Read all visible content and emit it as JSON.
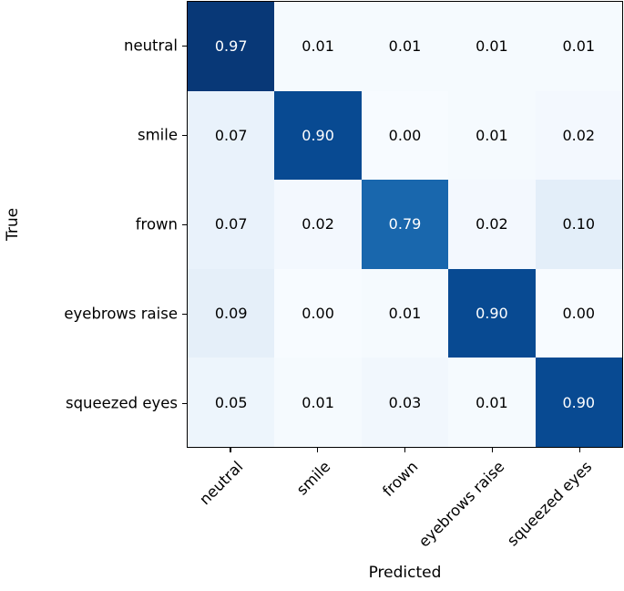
{
  "chart_data": {
    "type": "heatmap",
    "title": "",
    "xlabel": "Predicted",
    "ylabel": "True",
    "categories": [
      "neutral",
      "smile",
      "frown",
      "eyebrows raise",
      "squeezed eyes"
    ],
    "x_tick_labels": [
      "neutral",
      "smile",
      "frown",
      "eyebrows raise",
      "squeezed eyes"
    ],
    "y_tick_labels": [
      "neutral",
      "smile",
      "frown",
      "eyebrows raise",
      "squeezed eyes"
    ],
    "rows": [
      [
        0.97,
        0.01,
        0.01,
        0.01,
        0.01
      ],
      [
        0.07,
        0.9,
        0.0,
        0.01,
        0.02
      ],
      [
        0.07,
        0.02,
        0.79,
        0.02,
        0.1
      ],
      [
        0.09,
        0.0,
        0.01,
        0.9,
        0.0
      ],
      [
        0.05,
        0.01,
        0.03,
        0.01,
        0.9
      ]
    ],
    "value_range": [
      0,
      1
    ],
    "colormap": "Blues",
    "colormap_stops": [
      "#f7fbff",
      "#deebf7",
      "#c6dbef",
      "#9ecae1",
      "#6baed6",
      "#4292c6",
      "#2171b5",
      "#08519c",
      "#08306b"
    ],
    "grid": false,
    "legend": "none"
  }
}
